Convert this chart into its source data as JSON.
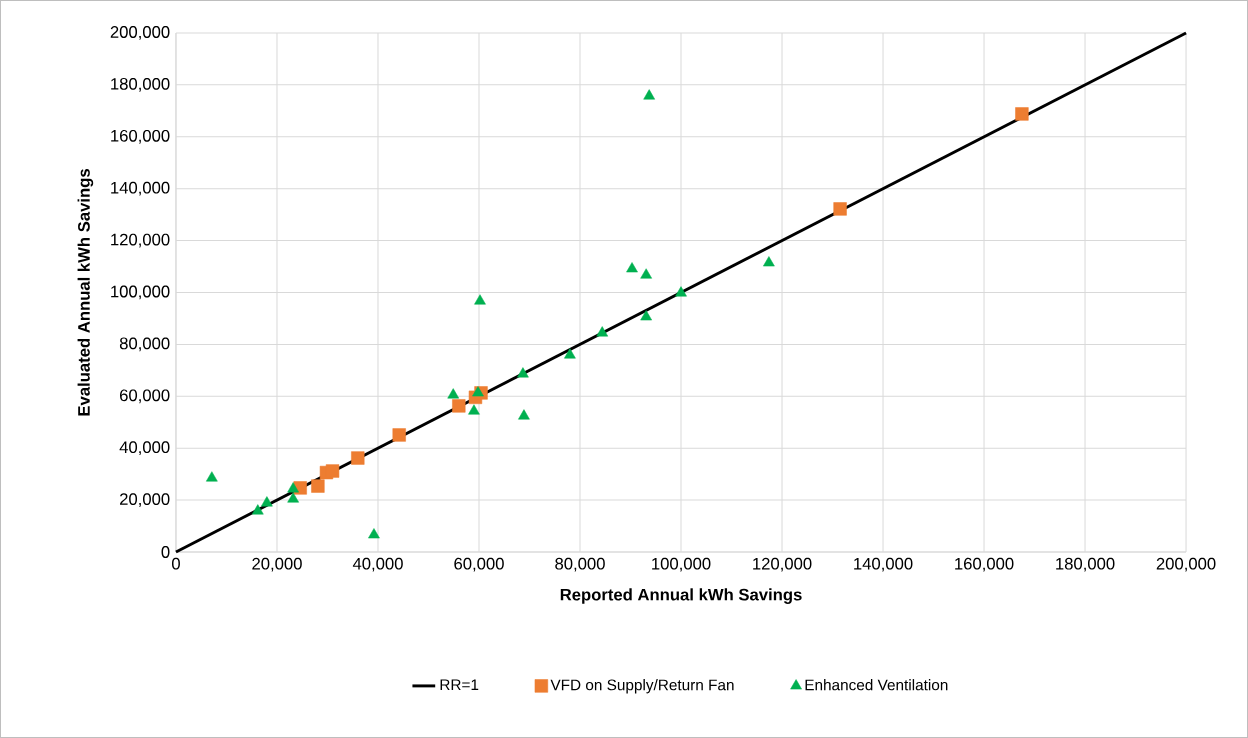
{
  "chart_data": {
    "type": "scatter",
    "xlabel": "Reported Annual kWh Savings",
    "ylabel": "Evaluated Annual kWh Savings",
    "xlim": [
      0,
      200000
    ],
    "ylim": [
      0,
      200000
    ],
    "xticks": [
      0,
      {
        "value": 20000,
        "label": "20,000"
      },
      {
        "value": 40000,
        "label": "40,000"
      },
      {
        "value": 60000,
        "label": "60,000"
      },
      {
        "value": 80000,
        "label": "80,000"
      },
      {
        "value": 100000,
        "label": "100,000"
      },
      {
        "value": 120000,
        "label": "120,000"
      },
      {
        "value": 140000,
        "label": "140,000"
      },
      {
        "value": 160000,
        "label": "160,000"
      },
      {
        "value": 180000,
        "label": "180,000"
      },
      {
        "value": 200000,
        "label": "200,000"
      }
    ],
    "yticks": [
      0,
      {
        "value": 20000,
        "label": "20,000"
      },
      {
        "value": 40000,
        "label": "40,000"
      },
      {
        "value": 60000,
        "label": "60,000"
      },
      {
        "value": 80000,
        "label": "80,000"
      },
      {
        "value": 100000,
        "label": "100,000"
      },
      {
        "value": 120000,
        "label": "120,000"
      },
      {
        "value": 140000,
        "label": "140,000"
      },
      {
        "value": 160000,
        "label": "160,000"
      },
      {
        "value": 180000,
        "label": "180,000"
      },
      {
        "value": 200000,
        "label": "200,000"
      }
    ],
    "grid": true,
    "legend": "bottom",
    "series": [
      {
        "name": "RR=1",
        "type": "line",
        "color": "#000000",
        "marker": "none",
        "line_style": "solid",
        "x": [
          0,
          200000
        ],
        "values": [
          0,
          200000
        ]
      },
      {
        "name": "VFD on Supply/Return Fan",
        "color": "#ed7d31",
        "marker": "square",
        "x": [
          24600,
          28100,
          29800,
          31000,
          36000,
          44200,
          56000,
          59300,
          60400,
          131500,
          167500
        ],
        "values": [
          24700,
          25400,
          30600,
          31200,
          36200,
          45100,
          56300,
          59600,
          61300,
          132200,
          168800
        ]
      },
      {
        "name": "Enhanced Ventilation",
        "color": "#00b050",
        "marker": "triangle",
        "x": [
          7100,
          16200,
          18000,
          23200,
          23200,
          39200,
          54900,
          59000,
          59800,
          60200,
          68700,
          68900,
          78000,
          84400,
          90300,
          93100,
          93100,
          100000,
          117400,
          93700
        ],
        "values": [
          28500,
          15800,
          18900,
          24300,
          20400,
          6600,
          60500,
          54300,
          61300,
          96700,
          68600,
          52400,
          75900,
          84400,
          109100,
          106700,
          90600,
          99800,
          111400,
          175700
        ]
      }
    ]
  }
}
